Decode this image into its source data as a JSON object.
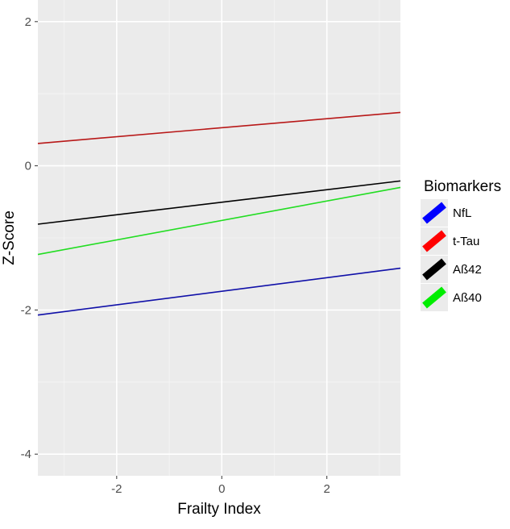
{
  "chart_data": {
    "type": "line",
    "title": "",
    "xlabel": "Frailty Index",
    "ylabel": "Z-Score",
    "xlim": [
      -3.5,
      3.4
    ],
    "ylim": [
      -4.3,
      2.3
    ],
    "xticks": [
      -2,
      0,
      2
    ],
    "xtick_labels": [
      "-2",
      "0",
      "2"
    ],
    "yticks": [
      2,
      0,
      -2,
      -4
    ],
    "ytick_labels": [
      "2",
      "0",
      "-2",
      "-4"
    ],
    "grid": true,
    "legend": {
      "title": "Biomarkers",
      "position": "right",
      "entries": [
        "NfL",
        "t-Tau",
        "Aß42",
        "Aß40"
      ]
    },
    "series": [
      {
        "name": "NfL",
        "color": "#1010a8",
        "legend_color": "#0000ff",
        "x": [
          -3.5,
          3.4
        ],
        "y": [
          -2.07,
          -1.42
        ]
      },
      {
        "name": "t-Tau",
        "color": "#b81818",
        "legend_color": "#ff0000",
        "x": [
          -3.5,
          3.4
        ],
        "y": [
          0.31,
          0.74
        ]
      },
      {
        "name": "Aß42",
        "color": "#000000",
        "legend_color": "#000000",
        "x": [
          -3.5,
          3.4
        ],
        "y": [
          -0.81,
          -0.21
        ]
      },
      {
        "name": "Aß40",
        "color": "#22dd22",
        "legend_color": "#00ee00",
        "x": [
          -3.5,
          3.4
        ],
        "y": [
          -1.23,
          -0.3
        ]
      }
    ]
  }
}
